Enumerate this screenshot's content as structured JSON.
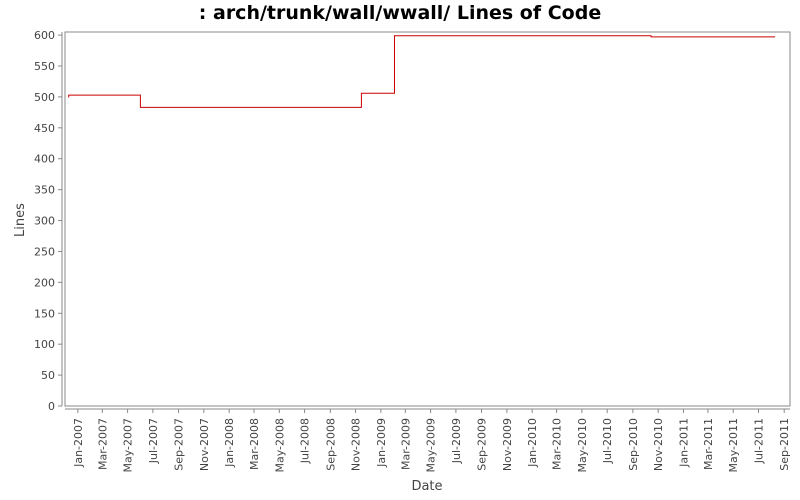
{
  "chart_data": {
    "type": "line",
    "title": ": arch/trunk/wall/wwall/ Lines of Code",
    "xlabel": "Date",
    "ylabel": "Lines",
    "ylim": [
      0,
      605
    ],
    "xlim": [
      "2006-12-01",
      "2011-09-15"
    ],
    "yticks": [
      0,
      50,
      100,
      150,
      200,
      250,
      300,
      350,
      400,
      450,
      500,
      550,
      600
    ],
    "xticks": [
      {
        "label": "Jan-2007",
        "date": "2007-01-01"
      },
      {
        "label": "Mar-2007",
        "date": "2007-03-01"
      },
      {
        "label": "May-2007",
        "date": "2007-05-01"
      },
      {
        "label": "Jul-2007",
        "date": "2007-07-01"
      },
      {
        "label": "Sep-2007",
        "date": "2007-09-01"
      },
      {
        "label": "Nov-2007",
        "date": "2007-11-01"
      },
      {
        "label": "Jan-2008",
        "date": "2008-01-01"
      },
      {
        "label": "Mar-2008",
        "date": "2008-03-01"
      },
      {
        "label": "May-2008",
        "date": "2008-05-01"
      },
      {
        "label": "Jul-2008",
        "date": "2008-07-01"
      },
      {
        "label": "Sep-2008",
        "date": "2008-09-01"
      },
      {
        "label": "Nov-2008",
        "date": "2008-11-01"
      },
      {
        "label": "Jan-2009",
        "date": "2009-01-01"
      },
      {
        "label": "Mar-2009",
        "date": "2009-03-01"
      },
      {
        "label": "May-2009",
        "date": "2009-05-01"
      },
      {
        "label": "Jul-2009",
        "date": "2009-07-01"
      },
      {
        "label": "Sep-2009",
        "date": "2009-09-01"
      },
      {
        "label": "Nov-2009",
        "date": "2009-11-01"
      },
      {
        "label": "Jan-2010",
        "date": "2010-01-01"
      },
      {
        "label": "Mar-2010",
        "date": "2010-03-01"
      },
      {
        "label": "May-2010",
        "date": "2010-05-01"
      },
      {
        "label": "Jul-2010",
        "date": "2010-07-01"
      },
      {
        "label": "Sep-2010",
        "date": "2010-09-01"
      },
      {
        "label": "Nov-2010",
        "date": "2010-11-01"
      },
      {
        "label": "Jan-2011",
        "date": "2011-01-01"
      },
      {
        "label": "Mar-2011",
        "date": "2011-03-01"
      },
      {
        "label": "May-2011",
        "date": "2011-05-01"
      },
      {
        "label": "Jul-2011",
        "date": "2011-07-01"
      },
      {
        "label": "Sep-2011",
        "date": "2011-09-01"
      }
    ],
    "grid": false,
    "line_color": "#cc0000",
    "step": true,
    "series": [
      {
        "points": [
          {
            "x": "2006-12-10",
            "y": 499
          },
          {
            "x": "2006-12-10",
            "y": 503
          },
          {
            "x": "2007-06-01",
            "y": 503
          },
          {
            "x": "2007-06-01",
            "y": 483
          },
          {
            "x": "2008-11-15",
            "y": 483
          },
          {
            "x": "2008-11-15",
            "y": 506
          },
          {
            "x": "2009-02-03",
            "y": 506
          },
          {
            "x": "2009-02-03",
            "y": 599
          },
          {
            "x": "2010-10-15",
            "y": 599
          },
          {
            "x": "2010-10-15",
            "y": 597
          },
          {
            "x": "2011-08-10",
            "y": 597
          }
        ]
      }
    ]
  }
}
